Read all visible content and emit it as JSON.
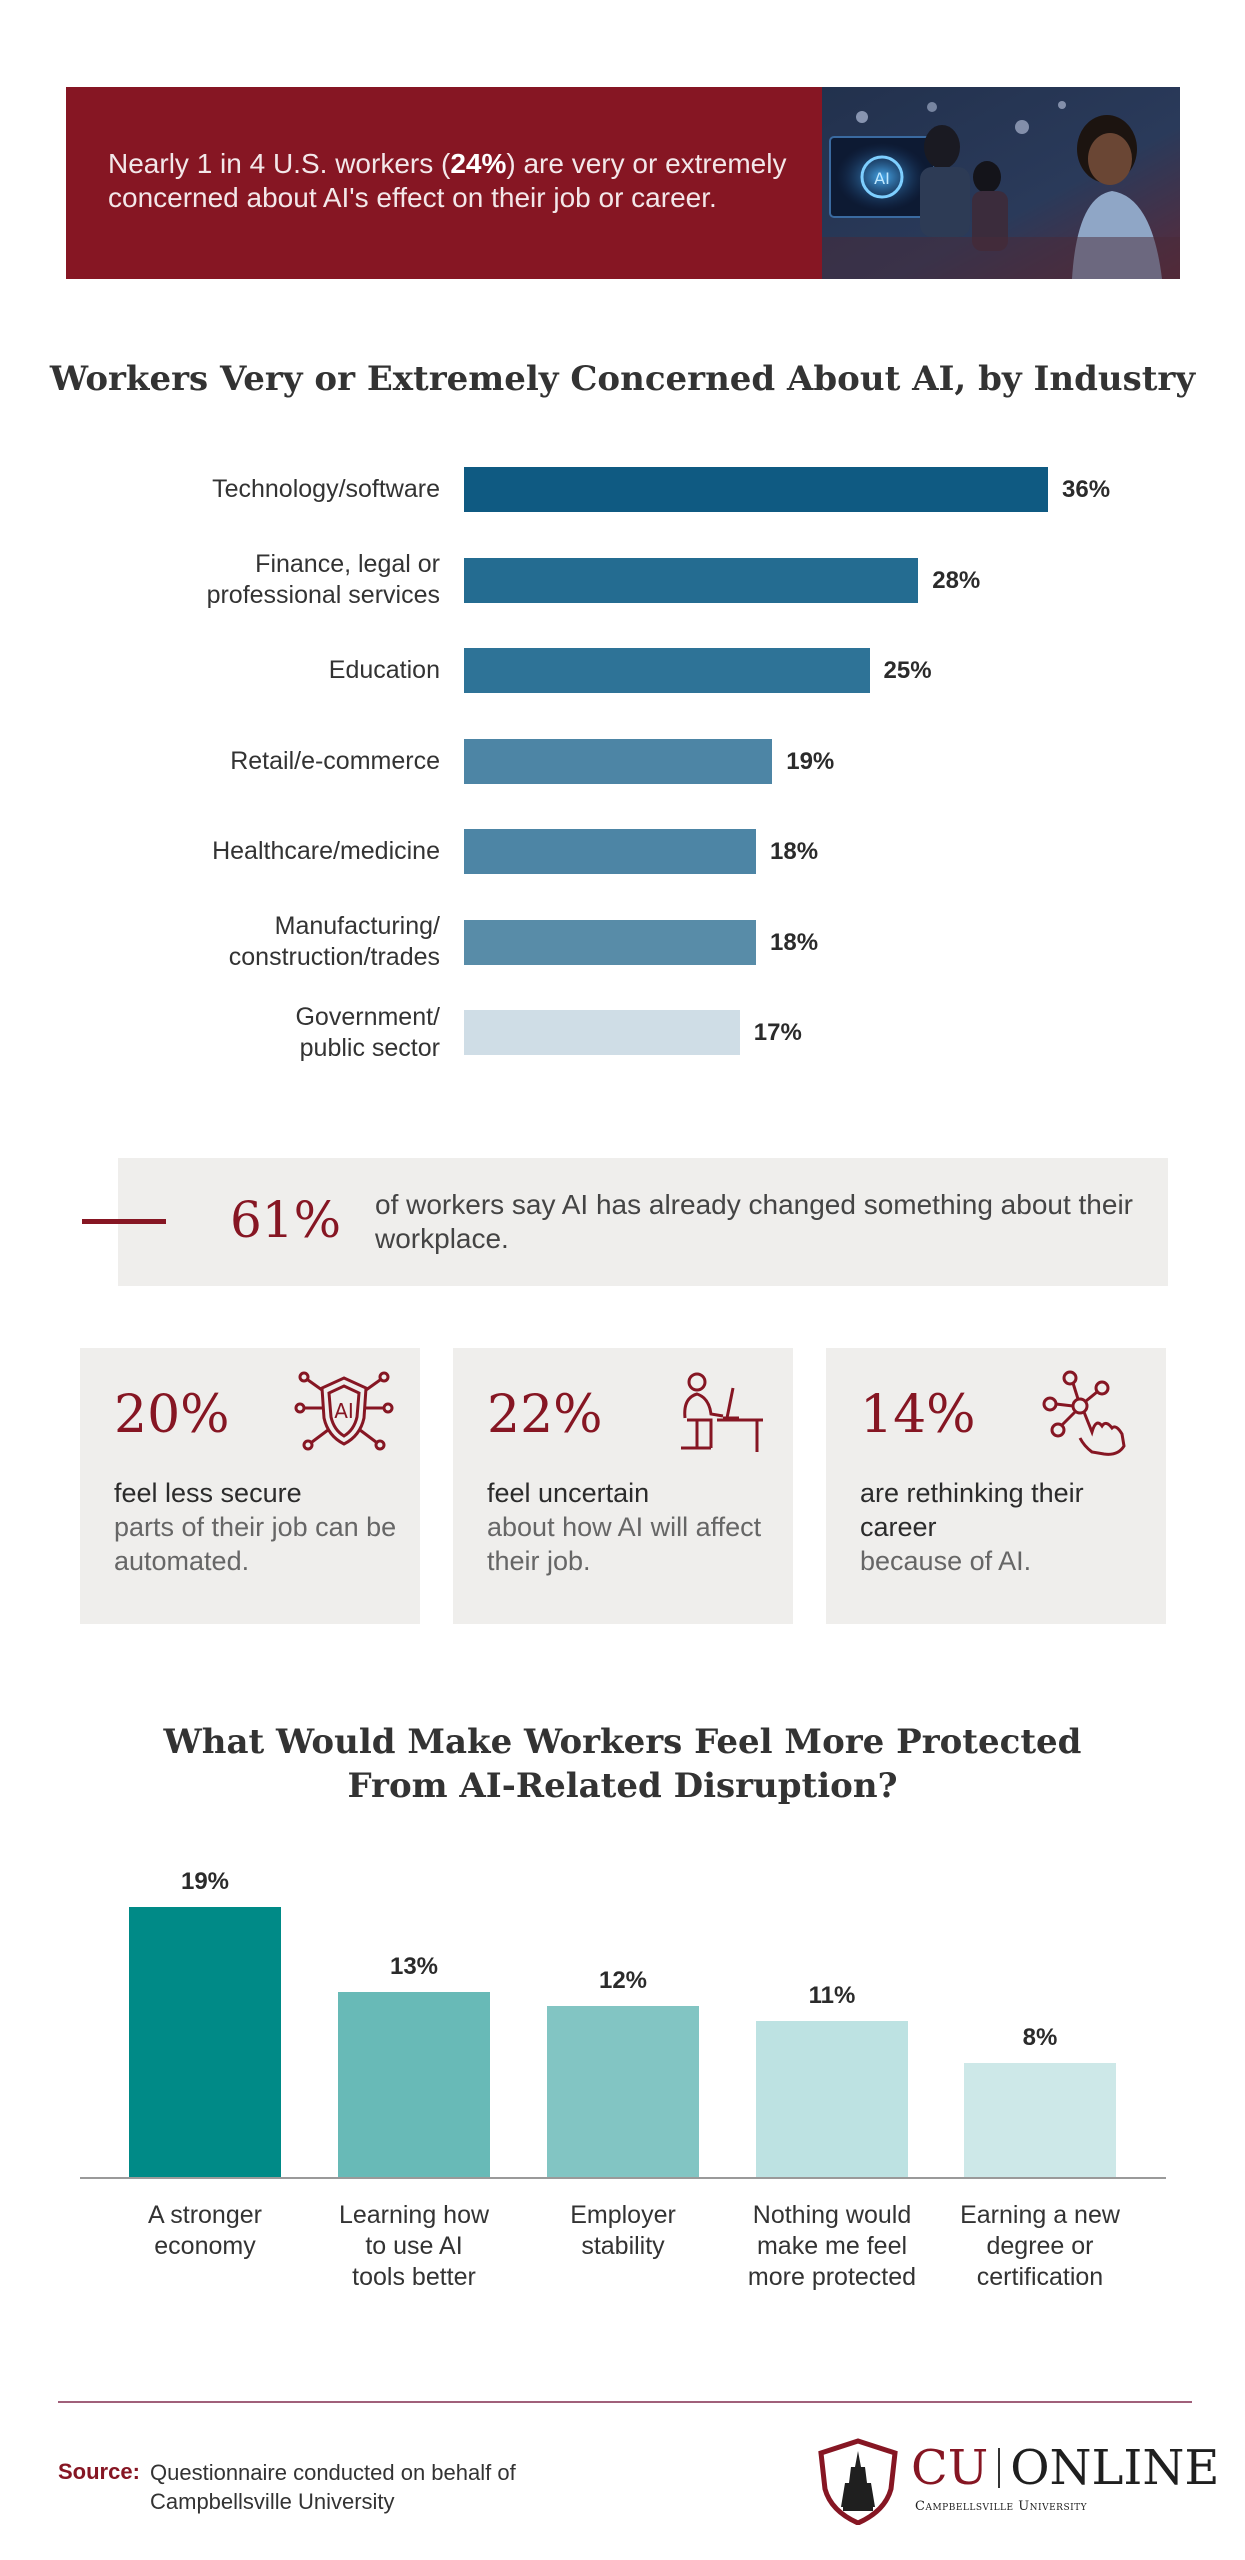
{
  "hero": {
    "text_before": "Nearly 1 in 4 U.S. workers (",
    "highlight": "24%",
    "text_after": ") are very or extremely concerned about AI's effect on their job or career."
  },
  "chart1": {
    "title": "Workers Very or Extremely Concerned About AI, by Industry"
  },
  "chart_data": [
    {
      "type": "bar",
      "orientation": "horizontal",
      "title": "Workers Very or Extremely Concerned About AI, by Industry",
      "categories": [
        [
          "Technology/software"
        ],
        [
          "Finance, legal or",
          "professional services"
        ],
        [
          "Education"
        ],
        [
          "Retail/e-commerce"
        ],
        [
          "Healthcare/medicine"
        ],
        [
          "Manufacturing/",
          "construction/trades"
        ],
        [
          "Government/",
          "public sector"
        ]
      ],
      "values": [
        36,
        28,
        25,
        19,
        18,
        18,
        17
      ],
      "value_labels": [
        "36%",
        "28%",
        "25%",
        "19%",
        "18%",
        "18%",
        "17%"
      ],
      "colors": [
        "#0f5a82",
        "#246c91",
        "#2e7397",
        "#4d85a5",
        "#4d85a5",
        "#588ca8",
        "#cfdde6"
      ],
      "xlim": [
        0,
        36
      ],
      "grid": false
    },
    {
      "type": "bar",
      "orientation": "vertical",
      "title": "What Would Make Workers Feel More Protected From AI-Related Disruption?",
      "categories": [
        [
          "A stronger",
          "economy"
        ],
        [
          "Learning how",
          "to use AI",
          "tools better"
        ],
        [
          "Employer",
          "stability"
        ],
        [
          "Nothing would",
          "make me feel",
          "more protected"
        ],
        [
          "Earning a new",
          "degree or",
          "certification"
        ]
      ],
      "values": [
        19,
        13,
        12,
        11,
        8
      ],
      "value_labels": [
        "19%",
        "13%",
        "12%",
        "11%",
        "8%"
      ],
      "colors": [
        "#008a87",
        "#68bab7",
        "#82c5c3",
        "#bde2e2",
        "#cde8e8"
      ],
      "ylim": [
        0,
        19
      ],
      "grid": false
    }
  ],
  "stat": {
    "value": "61%",
    "text": "of workers say AI has already changed something about their workplace."
  },
  "cards": [
    {
      "pct": "20%",
      "icon": "ai-shield-icon",
      "strong": "feel less secure",
      "rest": "parts of their job can be automated."
    },
    {
      "pct": "22%",
      "icon": "worker-at-desk-icon",
      "strong": "feel uncertain",
      "rest": "about how AI will affect their job."
    },
    {
      "pct": "14%",
      "icon": "hand-network-icon",
      "strong": "are rethinking their career",
      "rest": "because of AI."
    }
  ],
  "chart2": {
    "title_line1": "What Would Make Workers Feel More Protected",
    "title_line2": "From AI-Related Disruption?"
  },
  "footer": {
    "source_label": "Source:",
    "source_text": "Questionnaire conducted on behalf of Campbellsville University",
    "logo_cu": "CU",
    "logo_online": "ONLINE",
    "logo_sub": "Campbellsville University"
  },
  "colors": {
    "maroon": "#861623",
    "teal": "#008a87",
    "navy": "#0f5a82",
    "panel": "#efeeec"
  }
}
